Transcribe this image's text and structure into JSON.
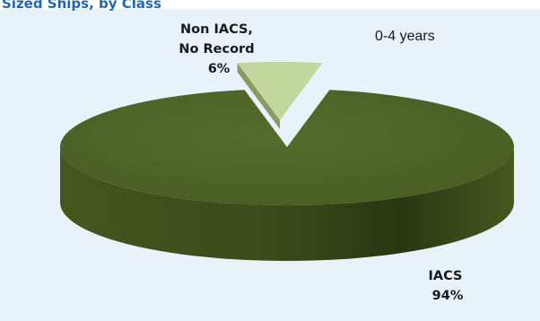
{
  "header": {
    "title": "Sized Ships, by Class"
  },
  "chart_data": {
    "type": "pie",
    "categories": [
      "IACS",
      "Non IACS, No Record"
    ],
    "values": [
      94,
      6
    ],
    "annotation": "0-4 years",
    "labels": [
      {
        "lines": [
          "IACS",
          "94%"
        ]
      },
      {
        "lines": [
          "Non IACS,",
          "No Record",
          "6%"
        ]
      }
    ],
    "colors": {
      "iacs_top": "#4f6228",
      "iacs_side": "#3b4b1c",
      "non_iacs_top": "#c3d69b",
      "non_iacs_side": "#8a9a66",
      "background": "#e8f2f8",
      "header_text": "#1f66b6"
    }
  }
}
